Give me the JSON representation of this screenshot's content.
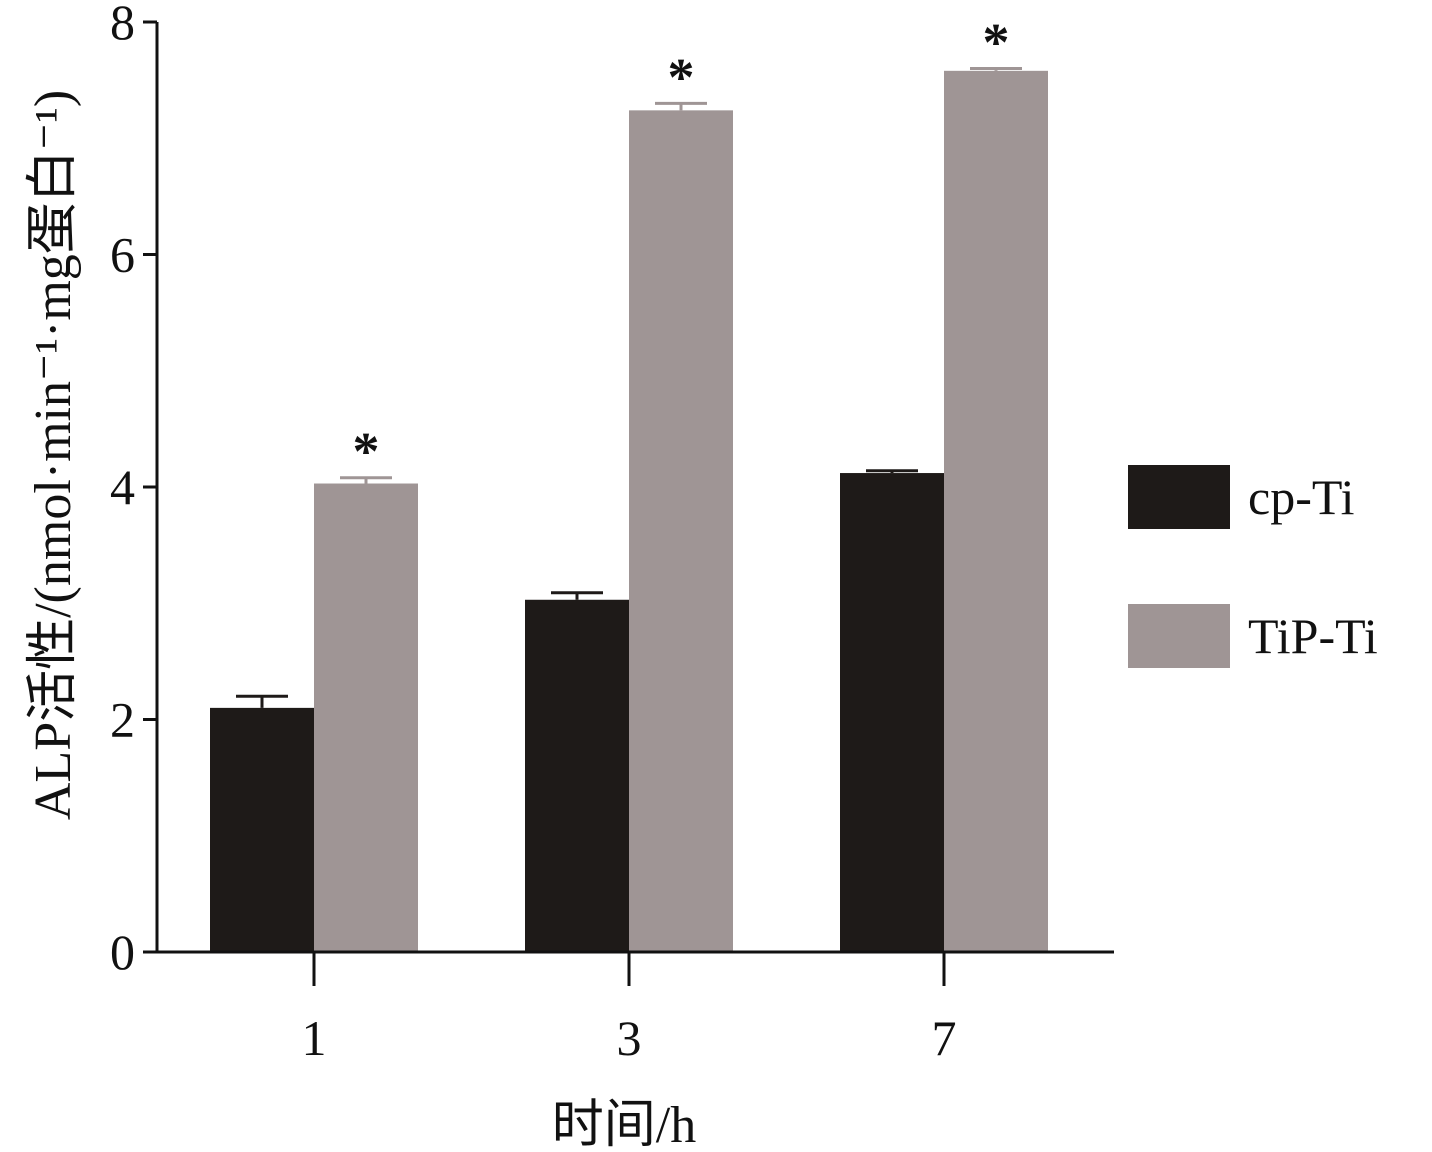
{
  "chart_data": {
    "type": "bar",
    "xlabel": "时间/h",
    "ylabel": "ALP活性/(nmol·min⁻¹·mg蛋白⁻¹)",
    "categories": [
      "1",
      "3",
      "7"
    ],
    "ylim": [
      0,
      8
    ],
    "yticks": [
      "0",
      "2",
      "4",
      "6",
      "8"
    ],
    "grid": false,
    "legend_position": "right",
    "series": [
      {
        "name": "cp-Ti",
        "color": "#1e1a18",
        "values": [
          2.1,
          3.03,
          4.12
        ],
        "errors": [
          0.1,
          0.06,
          0.02
        ],
        "sig": [
          "",
          "",
          ""
        ]
      },
      {
        "name": "TiP-Ti",
        "color": "#9f9595",
        "values": [
          4.03,
          7.24,
          7.58
        ],
        "errors": [
          0.05,
          0.06,
          0.02
        ],
        "sig": [
          "*",
          "*",
          "*"
        ]
      }
    ]
  }
}
